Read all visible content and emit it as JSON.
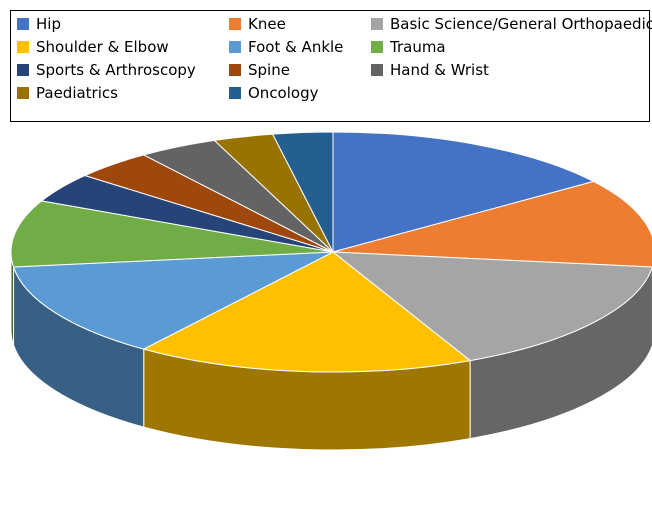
{
  "chart_data": {
    "type": "pie",
    "title": "",
    "legend_position": "top",
    "categories": [
      "Hip",
      "Knee",
      "Basic Science/General Orthopaedics",
      "Shoulder & Elbow",
      "Foot & Ankle",
      "Trauma",
      "Sports & Arthroscopy",
      "Spine",
      "Hand & Wrist",
      "Paediatrics",
      "Oncology"
    ],
    "values": [
      15,
      12,
      16,
      17,
      13,
      9,
      4,
      4,
      4,
      3,
      3
    ],
    "value_unit": "percent",
    "colors": [
      "#4472C4",
      "#ED7D31",
      "#A5A5A5",
      "#FFC000",
      "#5B9BD5",
      "#70AD47",
      "#264478",
      "#9E480E",
      "#636363",
      "#997300",
      "#255E91"
    ]
  }
}
